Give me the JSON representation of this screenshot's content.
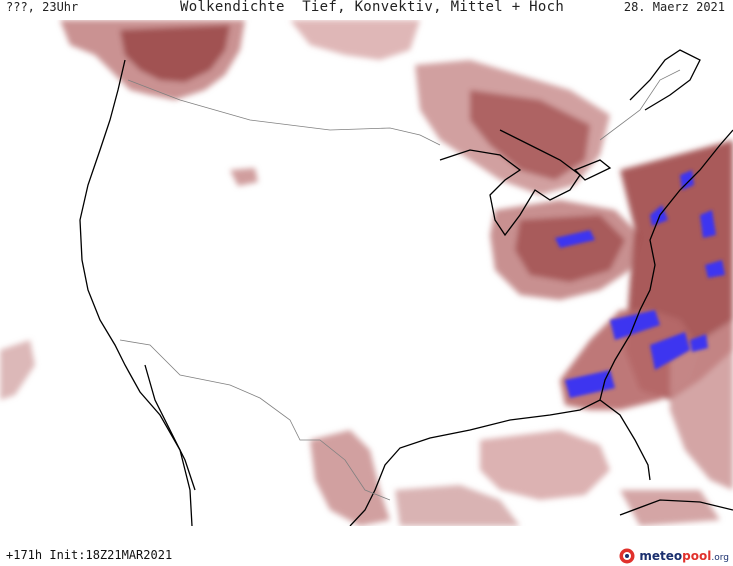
{
  "header": {
    "left": "???, 23Uhr",
    "title": "Wolkendichte  Tief, Konvektiv, Mittel + Hoch",
    "date": "28. Maerz 2021"
  },
  "footer": {
    "init": "+171h Init:18Z21MAR2021",
    "brand": {
      "part_a": "meteo",
      "part_b": "pool",
      "part_c": ".org"
    }
  },
  "colors": {
    "cloud_light": "#d9a3a3",
    "cloud_mid": "#b87070",
    "cloud_dark": "#8f3a3a",
    "convective": "#3c34f0",
    "coast": "#000000",
    "border": "#808080"
  }
}
